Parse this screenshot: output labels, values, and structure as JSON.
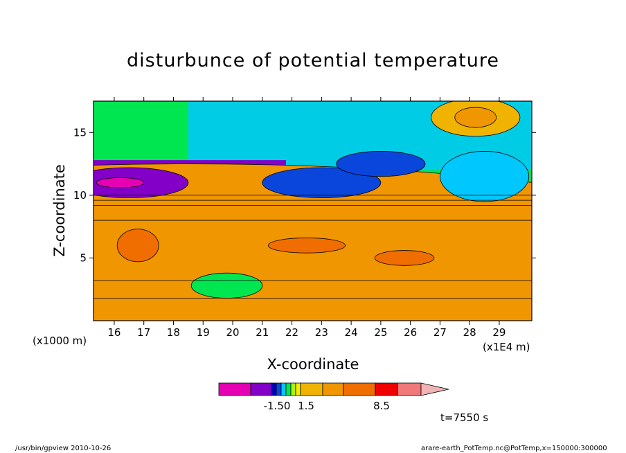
{
  "chart_data": {
    "type": "heatmap",
    "title": "disturbunce of potential temperature",
    "xlabel": "X-coordinate",
    "ylabel": "Z-coordinate",
    "x_unit": "(x1E4 m)",
    "y_unit": "(x1000 m)",
    "xlim": [
      15.3,
      30.1
    ],
    "ylim": [
      0,
      17.5
    ],
    "x_ticks": [
      16,
      17,
      18,
      19,
      20,
      21,
      22,
      23,
      24,
      25,
      26,
      27,
      28,
      29
    ],
    "y_ticks": [
      5,
      10,
      15
    ],
    "colorbar": {
      "levels": [
        "-1.50",
        "1.5",
        "8.5"
      ],
      "colors": [
        "#e600b4",
        "#8200c8",
        "#0000b4",
        "#0a46dc",
        "#00c8ff",
        "#00e650",
        "#b4f000",
        "#f0f000",
        "#f0b400",
        "#f09600",
        "#f06e00",
        "#f00000",
        "#f07878",
        "#f0b4b4"
      ]
    },
    "annotations": {
      "time": "t=7550 s"
    },
    "fields": [
      {
        "cx": 18.5,
        "cz": 4.5,
        "rx": 20,
        "rz": 8,
        "color": "#f09600"
      },
      {
        "cx": 16.5,
        "cz": 11,
        "rx": 2,
        "rz": 1.2,
        "color": "#8200c8"
      },
      {
        "cx": 16.2,
        "cz": 11,
        "rx": 0.8,
        "rz": 0.4,
        "color": "#e600b4"
      },
      {
        "cx": 23,
        "cz": 11,
        "rx": 2,
        "rz": 1.2,
        "color": "#0a46dc"
      },
      {
        "cx": 25,
        "cz": 12.5,
        "rx": 1.5,
        "rz": 1,
        "color": "#0a46dc"
      },
      {
        "cx": 28.5,
        "cz": 11.5,
        "rx": 1.5,
        "rz": 2,
        "color": "#00c8ff"
      },
      {
        "cx": 28.2,
        "cz": 16.2,
        "rx": 1.5,
        "rz": 1.5,
        "color": "#f0b400"
      },
      {
        "cx": 28.2,
        "cz": 16.2,
        "rx": 0.7,
        "rz": 0.8,
        "color": "#f09600"
      },
      {
        "cx": 16.8,
        "cz": 6,
        "rx": 0.7,
        "rz": 1.3,
        "color": "#f06e00"
      },
      {
        "cx": 22.5,
        "cz": 6,
        "rx": 1.3,
        "rz": 0.6,
        "color": "#f06e00"
      },
      {
        "cx": 25.8,
        "cz": 5,
        "rx": 1,
        "rz": 0.6,
        "color": "#f06e00"
      },
      {
        "cx": 19.8,
        "cz": 2.8,
        "rx": 1.2,
        "rz": 1,
        "color": "#00e650"
      }
    ]
  },
  "footer": {
    "left": "/usr/bin/gpview   2010-10-26",
    "right": "arare-earth_PotTemp.nc@PotTemp,x=150000:300000"
  }
}
